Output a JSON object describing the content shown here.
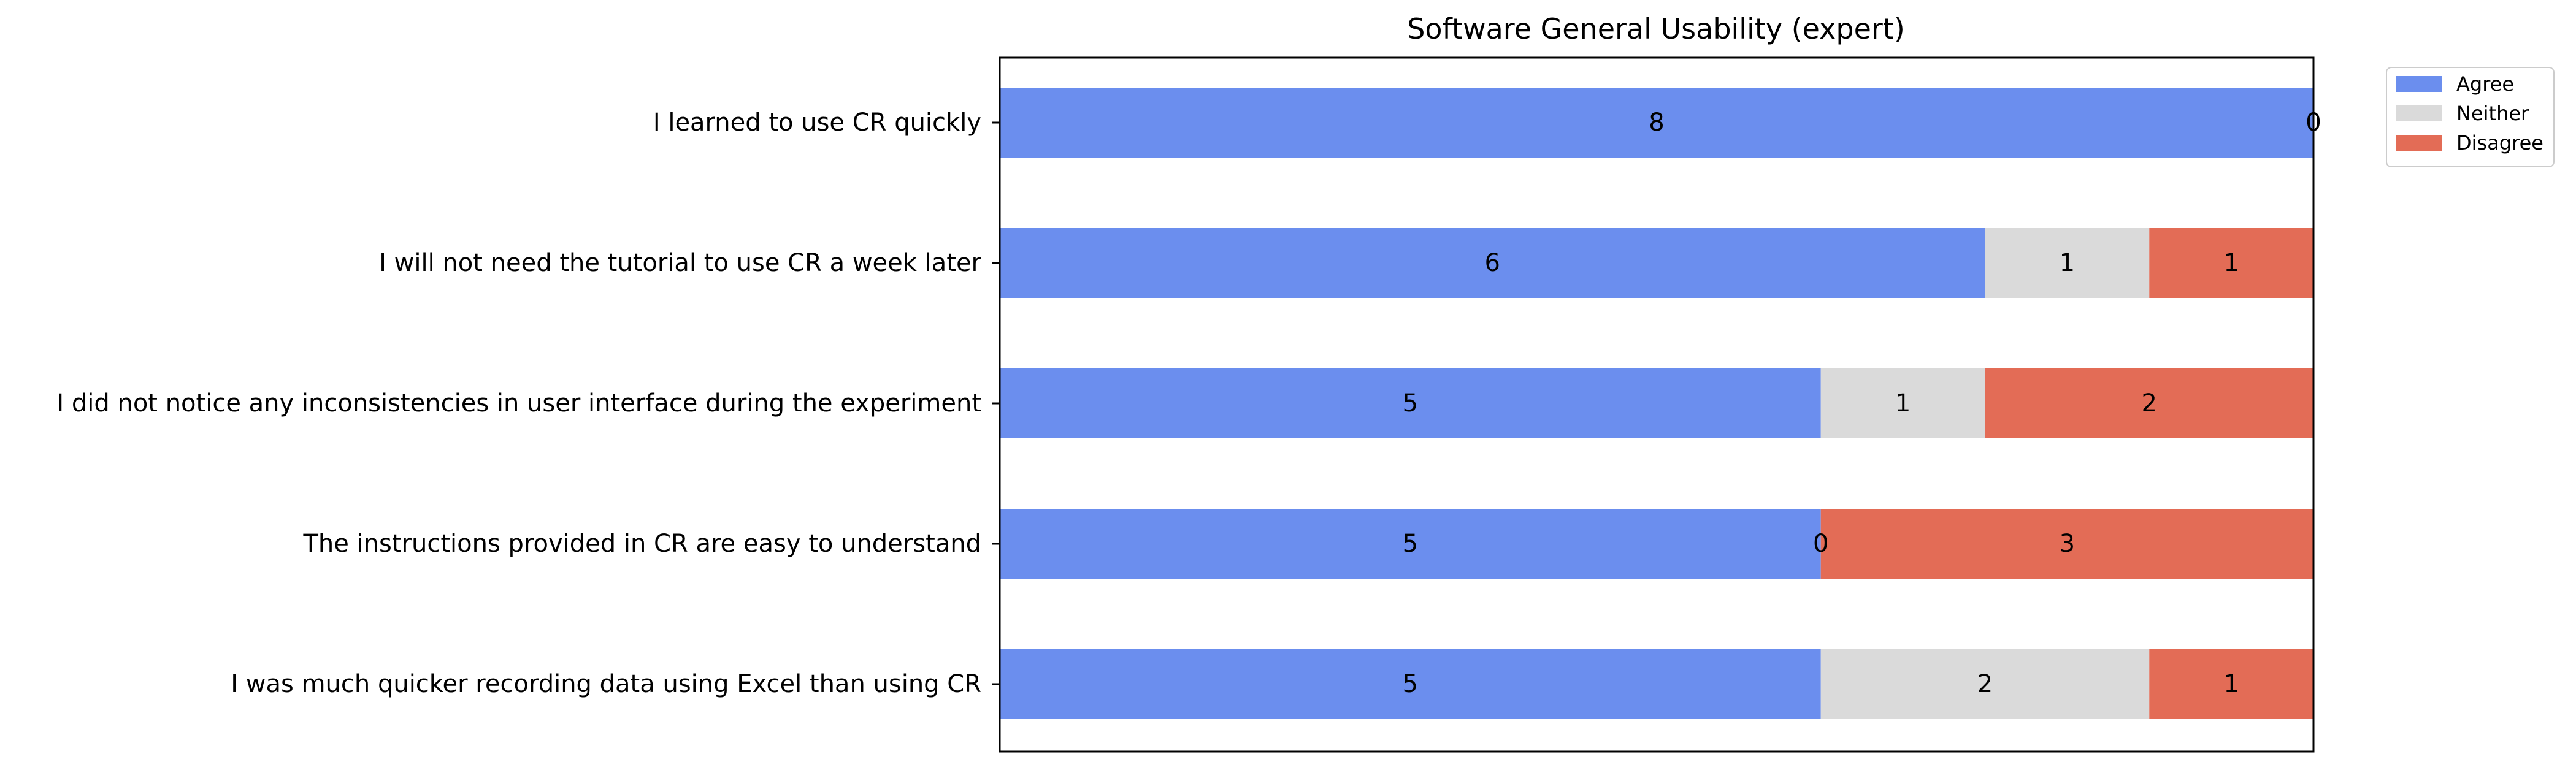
{
  "chart_data": {
    "type": "bar",
    "orientation": "horizontal",
    "stacked": true,
    "title": "Software General Usability (expert)",
    "xlabel": "",
    "ylabel": "",
    "xlim": [
      0,
      8
    ],
    "categories": [
      "I learned to use CR quickly",
      "I will not need the tutorial to use CR a week later",
      "I did not notice any inconsistencies in user interface during the experiment",
      "The instructions provided in CR are easy to understand",
      "I was much quicker recording data using Excel than using CR"
    ],
    "series": [
      {
        "name": "Agree",
        "color": "#6b8eee",
        "values": [
          8,
          6,
          5,
          5,
          5
        ]
      },
      {
        "name": "Neither",
        "color": "#dadada",
        "values": [
          0,
          1,
          1,
          0,
          2
        ]
      },
      {
        "name": "Disagree",
        "color": "#e36c56",
        "values": [
          0,
          1,
          2,
          3,
          1
        ]
      }
    ],
    "x_ticks_visible": false,
    "grid": false,
    "legend": "outside-top-right",
    "data_labels": true
  }
}
